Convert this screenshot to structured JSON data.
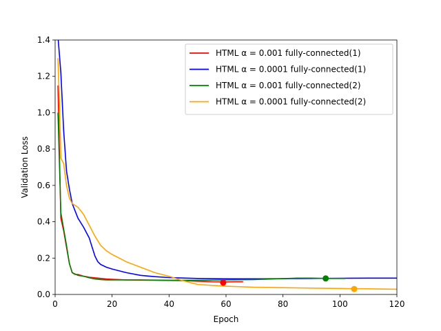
{
  "chart_data": {
    "type": "line",
    "xlabel": "Epoch",
    "ylabel": "Validation Loss",
    "xlim": [
      0,
      120
    ],
    "ylim": [
      0,
      1.4
    ],
    "xticks": [
      "0",
      "20",
      "40",
      "60",
      "80",
      "100",
      "120"
    ],
    "yticks": [
      "0.0",
      "0.2",
      "0.4",
      "0.6",
      "0.8",
      "1.0",
      "1.2",
      "1.4"
    ],
    "grid": false,
    "legend_position": "top-right",
    "series": [
      {
        "name": "HTML α = 0.001 fully-connected(1)",
        "color": "#ff0000",
        "x": [
          1,
          2,
          3,
          4,
          5,
          6,
          7,
          8,
          10,
          12,
          15,
          18,
          20,
          25,
          30,
          35,
          40,
          45,
          50,
          55,
          60,
          63,
          66
        ],
        "y": [
          1.15,
          0.42,
          0.35,
          0.26,
          0.17,
          0.12,
          0.11,
          0.11,
          0.1,
          0.095,
          0.09,
          0.085,
          0.083,
          0.08,
          0.079,
          0.078,
          0.077,
          0.076,
          0.073,
          0.07,
          0.069,
          0.07,
          0.07
        ],
        "marker": {
          "x": 59,
          "y": 0.065
        }
      },
      {
        "name": "HTML α = 0.0001 fully-connected(1)",
        "color": "#0000ff",
        "x": [
          1,
          2,
          3,
          4,
          5,
          6,
          8,
          10,
          12,
          13,
          14,
          15,
          16,
          18,
          20,
          25,
          30,
          35,
          40,
          50,
          60,
          70,
          80,
          90,
          100,
          110,
          120
        ],
        "y": [
          1.42,
          1.22,
          0.9,
          0.68,
          0.58,
          0.5,
          0.42,
          0.37,
          0.31,
          0.26,
          0.21,
          0.18,
          0.165,
          0.15,
          0.14,
          0.12,
          0.105,
          0.098,
          0.093,
          0.088,
          0.086,
          0.086,
          0.087,
          0.088,
          0.089,
          0.09,
          0.09
        ],
        "marker": null
      },
      {
        "name": "HTML α = 0.001 fully-connected(2)",
        "color": "#008000",
        "x": [
          1,
          2,
          3,
          4,
          5,
          6,
          8,
          10,
          12,
          14,
          16,
          18,
          20,
          25,
          30,
          35,
          40,
          50,
          60,
          70,
          80,
          85,
          90,
          95,
          102
        ],
        "y": [
          1.0,
          0.45,
          0.36,
          0.27,
          0.17,
          0.12,
          0.105,
          0.1,
          0.092,
          0.085,
          0.082,
          0.08,
          0.08,
          0.08,
          0.08,
          0.079,
          0.078,
          0.078,
          0.08,
          0.082,
          0.087,
          0.09,
          0.09,
          0.088,
          0.088
        ],
        "marker": {
          "x": 95,
          "y": 0.088
        }
      },
      {
        "name": "HTML α = 0.0001 fully-connected(2)",
        "color": "#ffa500",
        "x": [
          1,
          1.5,
          2,
          3,
          4,
          5,
          6,
          8,
          10,
          12,
          14,
          16,
          18,
          20,
          25,
          30,
          35,
          40,
          45,
          50,
          60,
          70,
          80,
          90,
          100,
          105,
          110,
          120
        ],
        "y": [
          1.3,
          1.05,
          0.75,
          0.72,
          0.6,
          0.53,
          0.5,
          0.48,
          0.44,
          0.38,
          0.32,
          0.27,
          0.24,
          0.22,
          0.18,
          0.15,
          0.12,
          0.1,
          0.075,
          0.055,
          0.045,
          0.04,
          0.037,
          0.035,
          0.033,
          0.032,
          0.031,
          0.029
        ],
        "marker": {
          "x": 105,
          "y": 0.03
        }
      }
    ]
  }
}
